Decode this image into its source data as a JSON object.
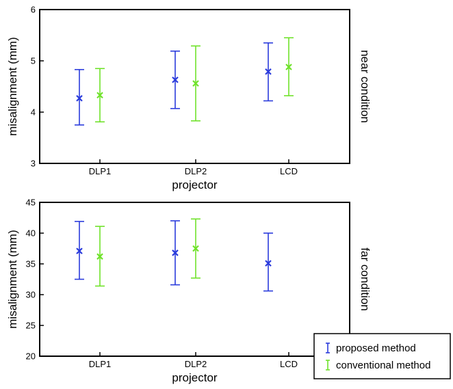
{
  "chart_data": [
    {
      "type": "errorbar",
      "categories": [
        "DLP1",
        "DLP2",
        "LCD"
      ],
      "series": [
        {
          "name": "proposed method",
          "color": "#2a3bdc",
          "mean": [
            4.27,
            4.63,
            4.79
          ],
          "upper": [
            4.83,
            5.19,
            5.35
          ],
          "lower": [
            3.75,
            4.07,
            4.22
          ]
        },
        {
          "name": "conventional method",
          "color": "#6fe22a",
          "mean": [
            4.33,
            4.56,
            4.88
          ],
          "upper": [
            4.85,
            5.29,
            5.45
          ],
          "lower": [
            3.81,
            3.83,
            4.32
          ]
        }
      ],
      "xlabel": "projector",
      "ylabel": "misalignment (mm)",
      "side_label": "near condition",
      "ylim": [
        3,
        6
      ],
      "yticks": [
        "3",
        "4",
        "5",
        "6"
      ],
      "grid": false
    },
    {
      "type": "errorbar",
      "categories": [
        "DLP1",
        "DLP2",
        "LCD"
      ],
      "series": [
        {
          "name": "proposed method",
          "color": "#2a3bdc",
          "mean": [
            37.1,
            36.8,
            35.1
          ],
          "upper": [
            41.9,
            42.0,
            40.0
          ],
          "lower": [
            32.5,
            31.6,
            30.6
          ]
        },
        {
          "name": "conventional method",
          "color": "#6fe22a",
          "mean": [
            36.2,
            37.5,
            null
          ],
          "upper": [
            41.1,
            42.3,
            null
          ],
          "lower": [
            31.4,
            32.7,
            null
          ]
        }
      ],
      "xlabel": "projector",
      "ylabel": "misalignment (mm)",
      "side_label": "far condition",
      "ylim": [
        20,
        45
      ],
      "yticks": [
        "20",
        "25",
        "30",
        "35",
        "40",
        "45"
      ],
      "grid": false
    }
  ],
  "legend": {
    "position": "bottom-right",
    "items": [
      {
        "label": "proposed method",
        "color": "#2a3bdc"
      },
      {
        "label": "conventional method",
        "color": "#6fe22a"
      }
    ]
  }
}
